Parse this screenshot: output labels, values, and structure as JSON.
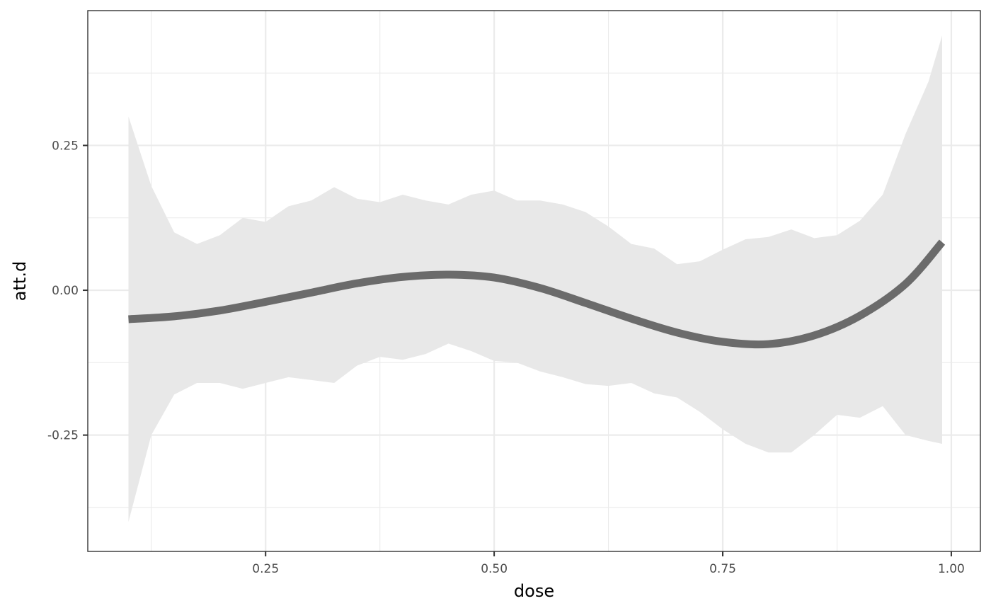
{
  "chart_data": {
    "type": "line",
    "title": "",
    "xlabel": "dose",
    "ylabel": "att.d",
    "xlim": [
      0.0555,
      1.0318
    ],
    "ylim": [
      -0.4508,
      0.4827
    ],
    "x_ticks": [
      0.25,
      0.5,
      0.75,
      1.0
    ],
    "x_tick_labels": [
      "0.25",
      "0.50",
      "0.75",
      "1.00"
    ],
    "y_ticks": [
      -0.25,
      0.0,
      0.25
    ],
    "y_tick_labels": [
      "-0.25",
      "0.00",
      "0.25"
    ],
    "grid": true,
    "legend": "none",
    "colors": {
      "line": "#6b6b6b",
      "band": "#e8e8e8",
      "grid": "#ebebeb",
      "panel_border": "#333333"
    },
    "series": [
      {
        "x": [
          0.1,
          0.15,
          0.2,
          0.25,
          0.3,
          0.35,
          0.4,
          0.45,
          0.5,
          0.55,
          0.6,
          0.65,
          0.7,
          0.75,
          0.8,
          0.85,
          0.9,
          0.95,
          0.99
        ],
        "y": [
          -0.05,
          -0.045,
          -0.035,
          -0.02,
          -0.004,
          0.012,
          0.023,
          0.027,
          0.022,
          0.004,
          -0.022,
          -0.049,
          -0.073,
          -0.089,
          -0.093,
          -0.078,
          -0.044,
          0.011,
          0.083
        ]
      }
    ],
    "confidence_band": {
      "x": [
        0.1,
        0.125,
        0.15,
        0.175,
        0.2,
        0.225,
        0.25,
        0.275,
        0.3,
        0.325,
        0.35,
        0.375,
        0.4,
        0.425,
        0.45,
        0.475,
        0.5,
        0.525,
        0.55,
        0.575,
        0.6,
        0.625,
        0.65,
        0.675,
        0.7,
        0.725,
        0.75,
        0.775,
        0.8,
        0.825,
        0.85,
        0.875,
        0.9,
        0.925,
        0.95,
        0.975,
        0.99
      ],
      "upper": [
        0.3,
        0.18,
        0.1,
        0.08,
        0.095,
        0.125,
        0.118,
        0.145,
        0.155,
        0.178,
        0.158,
        0.152,
        0.165,
        0.155,
        0.148,
        0.165,
        0.172,
        0.155,
        0.155,
        0.148,
        0.135,
        0.11,
        0.08,
        0.072,
        0.045,
        0.05,
        0.07,
        0.088,
        0.092,
        0.105,
        0.09,
        0.095,
        0.12,
        0.165,
        0.27,
        0.36,
        0.44
      ],
      "lower": [
        -0.4,
        -0.25,
        -0.18,
        -0.16,
        -0.16,
        -0.17,
        -0.16,
        -0.15,
        -0.155,
        -0.16,
        -0.13,
        -0.115,
        -0.12,
        -0.11,
        -0.092,
        -0.105,
        -0.122,
        -0.125,
        -0.14,
        -0.15,
        -0.162,
        -0.165,
        -0.16,
        -0.178,
        -0.185,
        -0.21,
        -0.24,
        -0.265,
        -0.28,
        -0.28,
        -0.25,
        -0.215,
        -0.22,
        -0.2,
        -0.25,
        -0.26,
        -0.265
      ]
    }
  }
}
